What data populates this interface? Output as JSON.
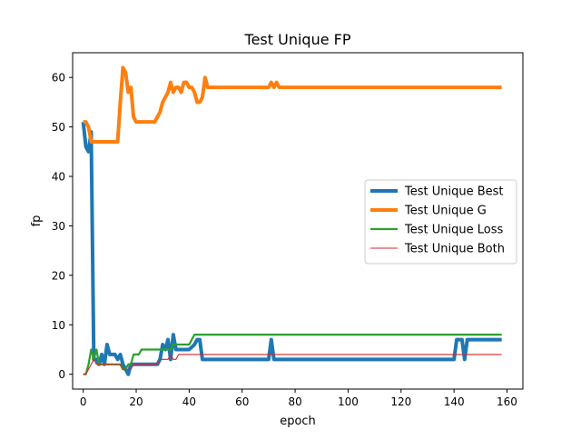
{
  "chart_data": {
    "type": "line",
    "title": "Test Unique FP",
    "xlabel": "epoch",
    "ylabel": "fp",
    "xlim": [
      -4,
      166
    ],
    "ylim": [
      -3,
      65
    ],
    "xticks": [
      0,
      20,
      40,
      60,
      80,
      100,
      120,
      140,
      160
    ],
    "yticks": [
      0,
      10,
      20,
      30,
      40,
      50,
      60
    ],
    "grid": false,
    "legend_position": "center-right",
    "series": [
      {
        "name": "Test Unique Best",
        "color": "#1f77b4",
        "width": "thick",
        "points": [
          [
            0,
            51
          ],
          [
            1,
            46
          ],
          [
            2,
            45
          ],
          [
            3,
            49
          ],
          [
            4,
            3
          ],
          [
            5,
            3
          ],
          [
            6,
            2
          ],
          [
            7,
            4
          ],
          [
            8,
            2
          ],
          [
            9,
            6
          ],
          [
            10,
            4
          ],
          [
            11,
            4
          ],
          [
            12,
            4
          ],
          [
            13,
            3
          ],
          [
            14,
            4
          ],
          [
            15,
            2
          ],
          [
            16,
            1
          ],
          [
            17,
            0
          ],
          [
            18,
            2
          ],
          [
            20,
            2
          ],
          [
            22,
            2
          ],
          [
            25,
            2
          ],
          [
            28,
            2
          ],
          [
            29,
            3
          ],
          [
            30,
            6
          ],
          [
            31,
            5
          ],
          [
            32,
            7
          ],
          [
            33,
            3
          ],
          [
            34,
            8
          ],
          [
            35,
            5
          ],
          [
            38,
            5
          ],
          [
            40,
            5
          ],
          [
            42,
            6
          ],
          [
            43,
            7
          ],
          [
            44,
            7
          ],
          [
            45,
            3
          ],
          [
            50,
            3
          ],
          [
            60,
            3
          ],
          [
            70,
            3
          ],
          [
            71,
            7
          ],
          [
            72,
            3
          ],
          [
            80,
            3
          ],
          [
            100,
            3
          ],
          [
            120,
            3
          ],
          [
            140,
            3
          ],
          [
            141,
            7
          ],
          [
            143,
            7
          ],
          [
            144,
            3
          ],
          [
            145,
            7
          ],
          [
            150,
            7
          ],
          [
            158,
            7
          ]
        ]
      },
      {
        "name": "Test Unique G",
        "color": "#ff7f0e",
        "width": "thick",
        "points": [
          [
            0,
            51
          ],
          [
            1,
            51
          ],
          [
            2,
            50
          ],
          [
            3,
            47
          ],
          [
            4,
            47
          ],
          [
            8,
            47
          ],
          [
            10,
            47
          ],
          [
            12,
            47
          ],
          [
            13,
            47
          ],
          [
            14,
            55
          ],
          [
            15,
            62
          ],
          [
            16,
            61
          ],
          [
            17,
            57
          ],
          [
            18,
            58
          ],
          [
            19,
            52
          ],
          [
            20,
            51
          ],
          [
            25,
            51
          ],
          [
            27,
            51
          ],
          [
            29,
            53
          ],
          [
            30,
            55
          ],
          [
            32,
            57
          ],
          [
            33,
            59
          ],
          [
            34,
            57
          ],
          [
            35,
            58
          ],
          [
            36,
            58
          ],
          [
            37,
            57
          ],
          [
            38,
            59
          ],
          [
            39,
            59
          ],
          [
            40,
            58
          ],
          [
            41,
            58
          ],
          [
            42,
            57
          ],
          [
            43,
            55
          ],
          [
            44,
            55
          ],
          [
            45,
            56
          ],
          [
            46,
            60
          ],
          [
            47,
            58
          ],
          [
            70,
            58
          ],
          [
            71,
            59
          ],
          [
            72,
            58
          ],
          [
            73,
            59
          ],
          [
            74,
            58
          ],
          [
            100,
            58
          ],
          [
            130,
            58
          ],
          [
            158,
            58
          ]
        ]
      },
      {
        "name": "Test Unique Loss",
        "color": "#2ca02c",
        "width": "normal",
        "points": [
          [
            0,
            0
          ],
          [
            1,
            0
          ],
          [
            2,
            2
          ],
          [
            3,
            5
          ],
          [
            4,
            3
          ],
          [
            5,
            5
          ],
          [
            6,
            2
          ],
          [
            7,
            2
          ],
          [
            8,
            2
          ],
          [
            10,
            2
          ],
          [
            12,
            2
          ],
          [
            14,
            2
          ],
          [
            15,
            1
          ],
          [
            16,
            1
          ],
          [
            17,
            2
          ],
          [
            18,
            2
          ],
          [
            19,
            4
          ],
          [
            21,
            4
          ],
          [
            22,
            5
          ],
          [
            25,
            5
          ],
          [
            27,
            5
          ],
          [
            28,
            5
          ],
          [
            30,
            5
          ],
          [
            32,
            5
          ],
          [
            33,
            5
          ],
          [
            34,
            6
          ],
          [
            35,
            6
          ],
          [
            38,
            6
          ],
          [
            40,
            6
          ],
          [
            41,
            7
          ],
          [
            42,
            8
          ],
          [
            44,
            8
          ],
          [
            50,
            8
          ],
          [
            60,
            8
          ],
          [
            80,
            8
          ],
          [
            100,
            8
          ],
          [
            120,
            8
          ],
          [
            140,
            8
          ],
          [
            158,
            8
          ]
        ]
      },
      {
        "name": "Test Unique Both",
        "color": "#d62728",
        "width": "thin",
        "points": [
          [
            0,
            0
          ],
          [
            1,
            0
          ],
          [
            2,
            1
          ],
          [
            3,
            2
          ],
          [
            4,
            3
          ],
          [
            5,
            2
          ],
          [
            6,
            2
          ],
          [
            8,
            2
          ],
          [
            10,
            2
          ],
          [
            12,
            2
          ],
          [
            14,
            2
          ],
          [
            15,
            1
          ],
          [
            16,
            1
          ],
          [
            17,
            1
          ],
          [
            18,
            1
          ],
          [
            19,
            2
          ],
          [
            20,
            2
          ],
          [
            22,
            2
          ],
          [
            25,
            2
          ],
          [
            26,
            2
          ],
          [
            28,
            2
          ],
          [
            29,
            3
          ],
          [
            30,
            3
          ],
          [
            32,
            3
          ],
          [
            33,
            4
          ],
          [
            34,
            3
          ],
          [
            35,
            3
          ],
          [
            36,
            4
          ],
          [
            38,
            4
          ],
          [
            40,
            4
          ],
          [
            50,
            4
          ],
          [
            60,
            4
          ],
          [
            80,
            4
          ],
          [
            100,
            4
          ],
          [
            120,
            4
          ],
          [
            140,
            4
          ],
          [
            158,
            4
          ]
        ]
      }
    ]
  }
}
